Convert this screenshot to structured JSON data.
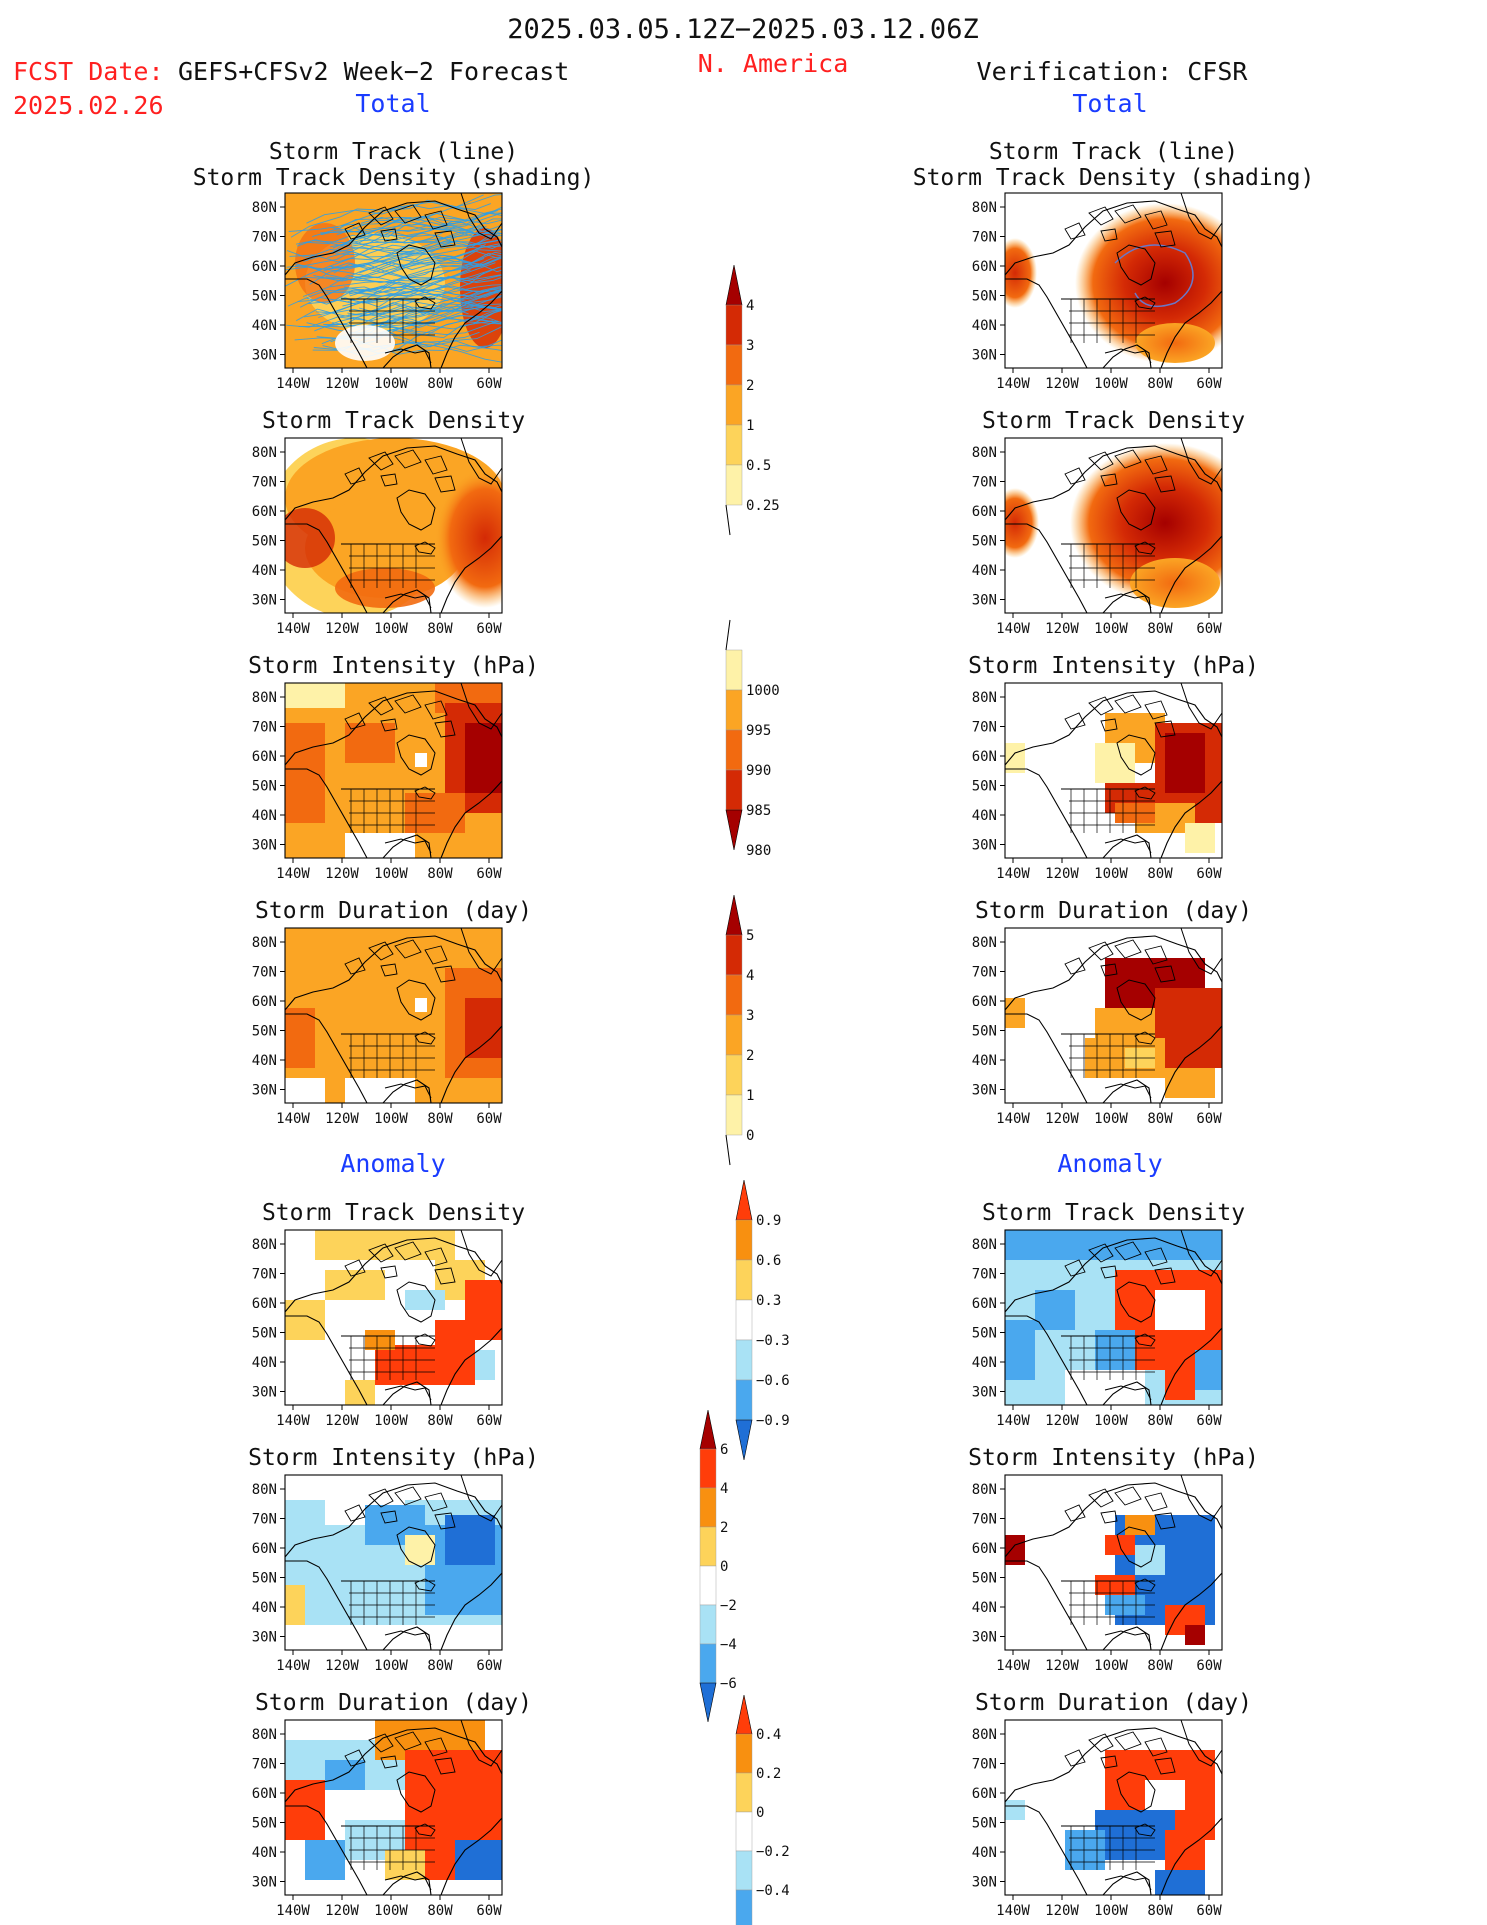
{
  "header": {
    "date_range": "2025.03.05.12Z−2025.03.12.06Z",
    "region": "N. America",
    "fcst_date_label": "FCST Date:",
    "fcst_date_value": "2025.02.26",
    "forecast_name": "GEFS+CFSv2 Week−2 Forecast",
    "verification": "Verification: CFSR"
  },
  "sections": {
    "total": "Total",
    "anomaly": "Anomaly"
  },
  "panel_titles": {
    "track_line": "Storm Track (line)",
    "track_shading": "Storm Track Density (shading)",
    "track_density": "Storm Track Density",
    "intensity": "Storm Intensity (hPa)",
    "duration": "Storm Duration (day)"
  },
  "axes": {
    "lat_labels": [
      "80N",
      "70N",
      "60N",
      "50N",
      "40N",
      "30N"
    ],
    "lon_labels": [
      "140W",
      "120W",
      "100W",
      "80W",
      "60W"
    ]
  },
  "colorbars": [
    {
      "id": "total-density",
      "labels": [
        "4",
        "3",
        "2",
        "1",
        "0.5",
        "0.25"
      ],
      "colors": [
        "#a50000",
        "#d42a05",
        "#f26a10",
        "#fba524",
        "#fdd35a",
        "#fef2a8"
      ]
    },
    {
      "id": "total-intensity",
      "labels": [
        "1000",
        "995",
        "990",
        "985",
        "980"
      ],
      "colors": [
        "#fef2a8",
        "#fba524",
        "#f26a10",
        "#d42a05",
        "#a50000"
      ]
    },
    {
      "id": "total-duration",
      "labels": [
        "5",
        "4",
        "3",
        "2",
        "1",
        "0"
      ],
      "colors": [
        "#a50000",
        "#d42a05",
        "#f26a10",
        "#fba524",
        "#fdd35a",
        "#fef2a8"
      ]
    },
    {
      "id": "anom-density",
      "labels": [
        "0.9",
        "0.6",
        "0.3",
        "−0.3",
        "−0.6",
        "−0.9"
      ],
      "colors": [
        "#ff3d0a",
        "#f89010",
        "#fdd35a",
        "#ffffff",
        "#a9e2f5",
        "#4aa8ee",
        "#1f6fd6"
      ]
    },
    {
      "id": "anom-intensity",
      "labels": [
        "6",
        "4",
        "2",
        "0",
        "−2",
        "−4",
        "−6"
      ],
      "colors": [
        "#a50000",
        "#ff3d0a",
        "#f89010",
        "#fdd35a",
        "#ffffff",
        "#a9e2f5",
        "#4aa8ee",
        "#1f6fd6"
      ]
    },
    {
      "id": "anom-duration",
      "labels": [
        "0.4",
        "0.2",
        "0",
        "−0.2",
        "−0.4"
      ],
      "colors": [
        "#ff3d0a",
        "#f89010",
        "#fdd35a",
        "#ffffff",
        "#a9e2f5",
        "#4aa8ee",
        "#1f6fd6"
      ]
    }
  ],
  "colors": {
    "header_red": "#ff2020",
    "section_blue": "#1a3cff",
    "ocean": "#ffffff",
    "coast": "#000000",
    "track_line": "#2f9fe6"
  }
}
